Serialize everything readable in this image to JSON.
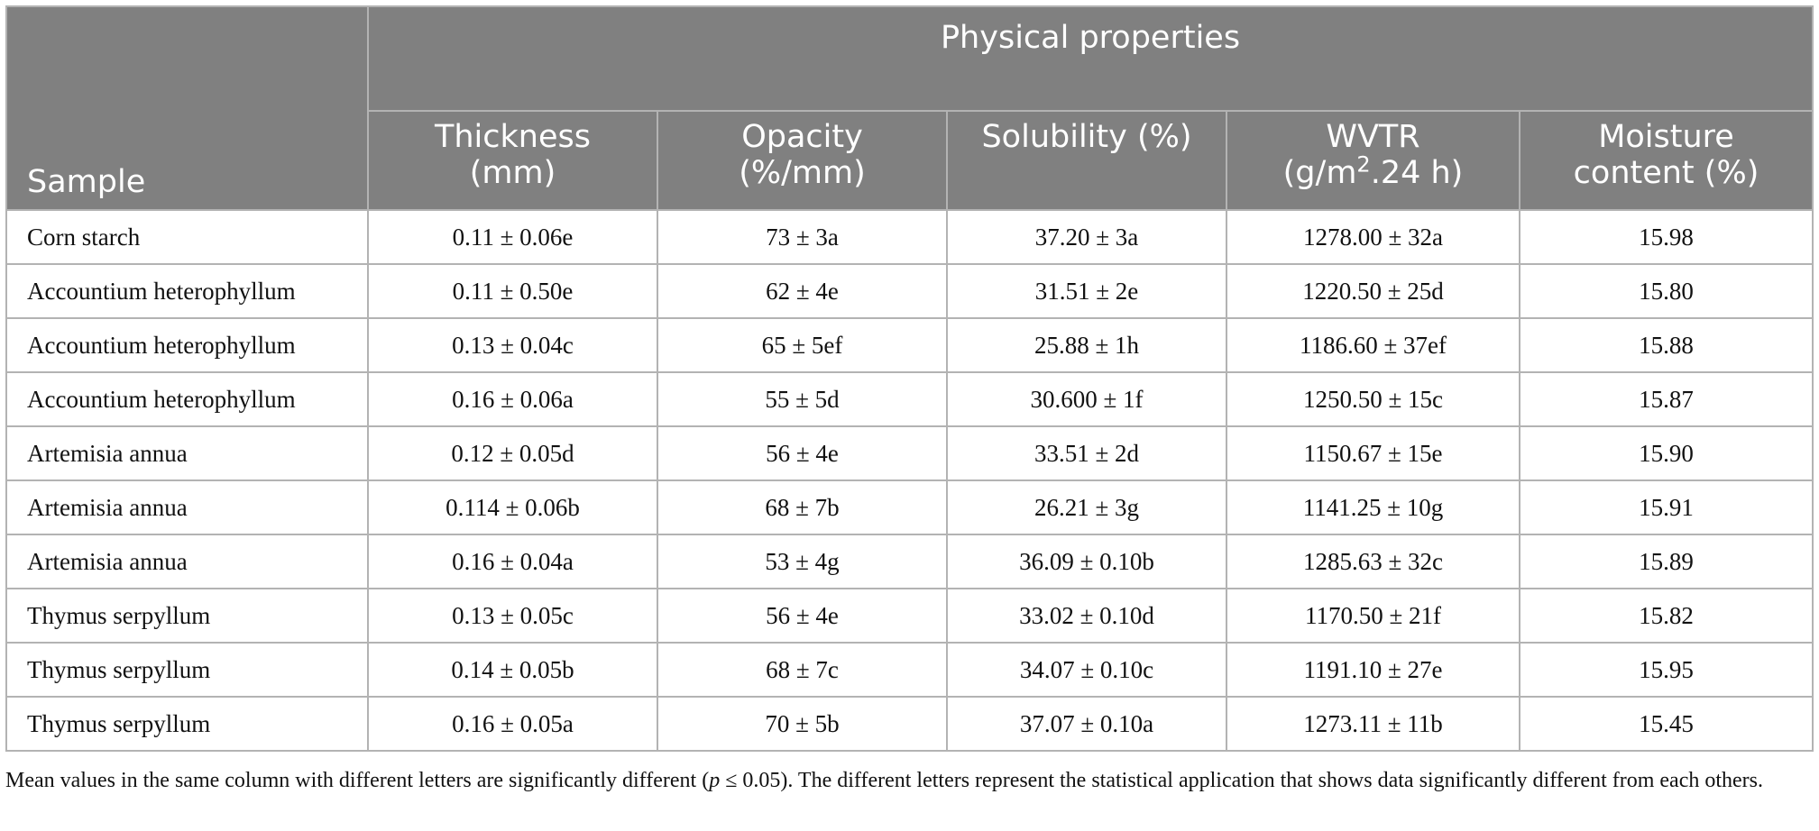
{
  "header": {
    "sample_label": "Sample",
    "group_label": "Physical properties",
    "columns": [
      {
        "line1": "Thickness",
        "line2": "(mm)"
      },
      {
        "line1": "Opacity",
        "line2": "(%/mm)"
      },
      {
        "line1": "Solubility (%)",
        "line2": ""
      },
      {
        "line1": "WVTR",
        "line2_pre": "(g/m",
        "line2_sup": "2",
        "line2_post": ".24 h)"
      },
      {
        "line1": "Moisture",
        "line2": "content (%)"
      }
    ]
  },
  "rows": [
    {
      "sample": "Corn starch",
      "thickness": "0.11 ± 0.06e",
      "opacity": "73 ± 3a",
      "solubility": "37.20 ± 3a",
      "wvtr": "1278.00 ± 32a",
      "moisture": "15.98"
    },
    {
      "sample": "Accountium heterophyllum",
      "thickness": "0.11 ± 0.50e",
      "opacity": "62 ± 4e",
      "solubility": "31.51 ± 2e",
      "wvtr": "1220.50 ± 25d",
      "moisture": "15.80"
    },
    {
      "sample": "Accountium heterophyllum",
      "thickness": "0.13 ± 0.04c",
      "opacity": "65 ± 5ef",
      "solubility": "25.88 ± 1h",
      "wvtr": "1186.60 ± 37ef",
      "moisture": "15.88"
    },
    {
      "sample": "Accountium heterophyllum",
      "thickness": "0.16 ± 0.06a",
      "opacity": "55 ± 5d",
      "solubility": "30.600 ± 1f",
      "wvtr": "1250.50 ± 15c",
      "moisture": "15.87"
    },
    {
      "sample": "Artemisia annua",
      "thickness": "0.12 ± 0.05d",
      "opacity": "56 ± 4e",
      "solubility": "33.51 ± 2d",
      "wvtr": "1150.67 ± 15e",
      "moisture": "15.90"
    },
    {
      "sample": "Artemisia annua",
      "thickness": "0.114 ± 0.06b",
      "opacity": "68 ± 7b",
      "solubility": "26.21 ± 3g",
      "wvtr": "1141.25 ± 10g",
      "moisture": "15.91"
    },
    {
      "sample": "Artemisia annua",
      "thickness": "0.16 ± 0.04a",
      "opacity": "53 ± 4g",
      "solubility": "36.09 ± 0.10b",
      "wvtr": "1285.63 ± 32c",
      "moisture": "15.89"
    },
    {
      "sample": "Thymus serpyllum",
      "thickness": "0.13 ± 0.05c",
      "opacity": "56 ± 4e",
      "solubility": "33.02 ± 0.10d",
      "wvtr": "1170.50 ± 21f",
      "moisture": "15.82"
    },
    {
      "sample": "Thymus serpyllum",
      "thickness": "0.14 ± 0.05b",
      "opacity": "68 ± 7c",
      "solubility": "34.07 ± 0.10c",
      "wvtr": "1191.10 ± 27e",
      "moisture": "15.95"
    },
    {
      "sample": "Thymus serpyllum",
      "thickness": "0.16 ± 0.05a",
      "opacity": "70 ± 5b",
      "solubility": "37.07 ± 0.10a",
      "wvtr": "1273.11 ± 11b",
      "moisture": "15.45"
    }
  ],
  "footnote": {
    "before_p": "Mean values in the same column with different letters are significantly different (",
    "p_symbol": "p",
    "after_p": " ≤ 0.05). The different letters represent the statistical application that shows data significantly different from each others."
  },
  "colors": {
    "header_bg": "#808080",
    "header_text": "#ffffff",
    "grid": "#b3b3b3",
    "body_text": "#111111"
  }
}
